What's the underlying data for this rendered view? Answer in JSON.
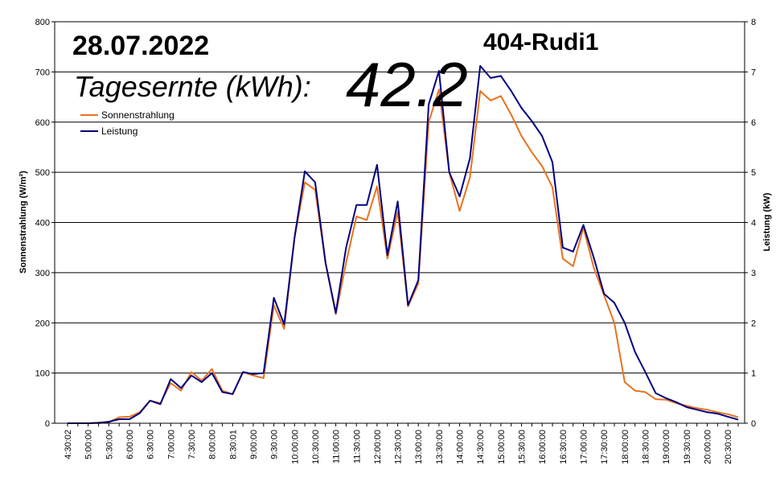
{
  "header": {
    "date": "28.07.2022",
    "station": "404-Rudi1",
    "yield_label": "Tagesernte (kWh):",
    "yield_value": "42.2"
  },
  "colors": {
    "sun": "#E8731E",
    "power": "#000080",
    "grid": "#000000",
    "background": "#FFFFFF"
  },
  "chart_data": {
    "type": "line",
    "ylabel": "Sonnenstrahlung (W/m²)",
    "y2label": "Leistung (kW)",
    "ylim": [
      0,
      800
    ],
    "y2lim": [
      0,
      8
    ],
    "yticks": [
      "0",
      "100",
      "200",
      "300",
      "400",
      "500",
      "600",
      "700",
      "800"
    ],
    "y2ticks": [
      "0",
      "1",
      "2",
      "3",
      "4",
      "5",
      "6",
      "7",
      "8"
    ],
    "grid": "horizontal",
    "legend_position": "top-left",
    "x": [
      "4:30:02",
      "4:45:00",
      "5:00:00",
      "5:15:00",
      "5:30:00",
      "5:45:00",
      "6:00:00",
      "6:15:00",
      "6:30:00",
      "6:45:00",
      "7:00:00",
      "7:15:00",
      "7:30:00",
      "7:45:00",
      "8:00:00",
      "8:15:00",
      "8:30:01",
      "8:45:00",
      "9:00:00",
      "9:15:00",
      "9:30:00",
      "9:45:00",
      "10:00:00",
      "10:15:00",
      "10:30:00",
      "10:45:00",
      "11:00:00",
      "11:15:00",
      "11:30:00",
      "11:45:00",
      "12:00:00",
      "12:15:00",
      "12:30:00",
      "12:45:00",
      "13:00:00",
      "13:15:00",
      "13:30:00",
      "13:45:00",
      "14:00:00",
      "14:15:00",
      "14:30:00",
      "14:45:00",
      "15:00:00",
      "15:15:00",
      "15:30:00",
      "15:45:00",
      "16:00:00",
      "16:15:00",
      "16:30:00",
      "16:45:00",
      "17:00:00",
      "17:15:00",
      "17:30:00",
      "17:45:00",
      "18:00:00",
      "18:15:00",
      "18:30:00",
      "18:45:00",
      "19:00:00",
      "19:15:00",
      "19:30:00",
      "19:45:00",
      "20:00:00",
      "20:15:00",
      "20:30:00",
      "20:45:00"
    ],
    "x_tick_labels": [
      "4:30:02",
      "5:00:00",
      "5:30:00",
      "6:00:00",
      "6:30:00",
      "7:00:00",
      "7:30:00",
      "8:00:00",
      "8:30:01",
      "9:00:00",
      "9:30:00",
      "10:00:00",
      "10:30:00",
      "11:00:00",
      "11:30:00",
      "12:00:00",
      "12:30:00",
      "13:00:00",
      "13:30:00",
      "14:00:00",
      "14:30:00",
      "15:00:00",
      "15:30:00",
      "16:00:00",
      "16:30:00",
      "17:00:00",
      "17:30:00",
      "18:00:00",
      "18:30:00",
      "19:00:00",
      "19:30:00",
      "20:00:00",
      "20:30:00"
    ],
    "series": [
      {
        "name": "Sonnenstrahlung",
        "axis": "left",
        "values": [
          0,
          0,
          0,
          0,
          2,
          12,
          13,
          22,
          45,
          40,
          80,
          65,
          102,
          85,
          108,
          65,
          58,
          102,
          95,
          90,
          235,
          188,
          370,
          480,
          465,
          320,
          217,
          320,
          412,
          405,
          472,
          328,
          422,
          233,
          278,
          600,
          665,
          500,
          423,
          490,
          662,
          643,
          652,
          615,
          572,
          540,
          512,
          470,
          328,
          313,
          390,
          310,
          255,
          200,
          82,
          65,
          62,
          48,
          47,
          40,
          35,
          30,
          27,
          22,
          18,
          12
        ]
      },
      {
        "name": "Leistung",
        "axis": "right",
        "values": [
          0,
          0,
          0,
          0.01,
          0.03,
          0.08,
          0.08,
          0.2,
          0.45,
          0.38,
          0.88,
          0.7,
          0.95,
          0.82,
          1.0,
          0.62,
          0.58,
          1.02,
          0.98,
          1.0,
          2.5,
          1.97,
          3.7,
          5.02,
          4.8,
          3.2,
          2.2,
          3.5,
          4.35,
          4.35,
          5.15,
          3.35,
          4.42,
          2.35,
          2.85,
          6.35,
          7.02,
          5.0,
          4.52,
          5.28,
          7.12,
          6.88,
          6.92,
          6.62,
          6.28,
          6.02,
          5.72,
          5.2,
          3.5,
          3.42,
          3.95,
          3.3,
          2.58,
          2.4,
          2.0,
          1.42,
          1.02,
          0.6,
          0.5,
          0.42,
          0.32,
          0.27,
          0.22,
          0.19,
          0.13,
          0.07
        ]
      }
    ]
  }
}
